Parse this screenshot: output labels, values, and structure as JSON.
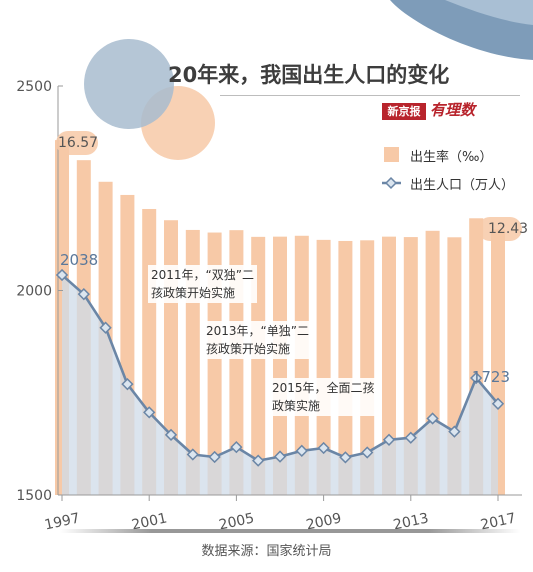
{
  "title": "20年来，我国出生人口的变化",
  "logo": {
    "name": "新京报",
    "sub": "有理数"
  },
  "source": "数据来源：国家统计局",
  "legend": {
    "birth_rate": "出生率（‰）",
    "births": "出生人口（万人）"
  },
  "notes": [
    {
      "line1": "2011年，“双独”二",
      "line2": "孩政策开始实施"
    },
    {
      "line1": "2013年，“单独”二",
      "line2": "孩政策开始实施"
    },
    {
      "line1": "2015年，全面二孩",
      "line2": "政策实施"
    }
  ],
  "labels": {
    "first_rate": "16.57",
    "last_rate": "12.43",
    "first_births": "2038",
    "last_births": "1723"
  },
  "chart_data": {
    "type": "bar+line",
    "x": [
      1997,
      1998,
      1999,
      2000,
      2001,
      2002,
      2003,
      2004,
      2005,
      2006,
      2007,
      2008,
      2009,
      2010,
      2011,
      2012,
      2013,
      2014,
      2015,
      2016,
      2017
    ],
    "x_tick_labels": [
      "1997",
      "2001",
      "2005",
      "2009",
      "2013",
      "2017"
    ],
    "y_ticks": [
      1500,
      2000,
      2500
    ],
    "ylim": [
      1500,
      2500
    ],
    "series": [
      {
        "name": "出生率（‰）",
        "type": "bar",
        "values": [
          16.57,
          15.64,
          14.64,
          14.03,
          13.38,
          12.86,
          12.41,
          12.29,
          12.4,
          12.09,
          12.1,
          12.14,
          11.95,
          11.9,
          11.93,
          12.1,
          12.08,
          12.37,
          12.07,
          12.95,
          12.43
        ]
      },
      {
        "name": "出生人口（万人）",
        "type": "line",
        "values": [
          2038,
          1991,
          1909,
          1771,
          1702,
          1647,
          1599,
          1593,
          1617,
          1584,
          1594,
          1608,
          1615,
          1592,
          1604,
          1635,
          1640,
          1687,
          1655,
          1786,
          1723
        ]
      }
    ],
    "colors": {
      "bar": "#f7c9a7",
      "line": "#6b86a6",
      "area": "#cfdbe8",
      "marker_fill": "#dbe5ef",
      "axis": "#9a9a9a"
    }
  }
}
